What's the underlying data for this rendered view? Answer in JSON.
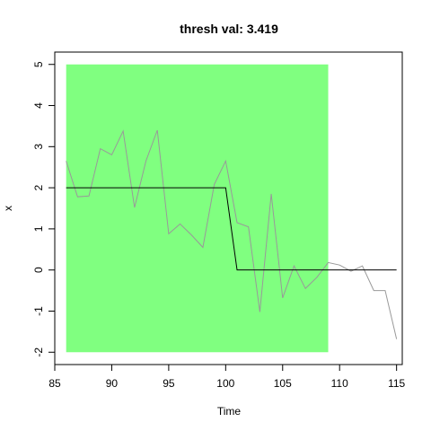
{
  "chart_data": {
    "type": "line",
    "title": "thresh val: 3.419",
    "xlabel": "Time",
    "ylabel": "x",
    "xlim": [
      85,
      115.5
    ],
    "ylim": [
      -2.3,
      5.3
    ],
    "x_ticks": [
      85,
      90,
      95,
      100,
      105,
      110,
      115
    ],
    "y_ticks": [
      -2,
      -1,
      0,
      1,
      2,
      3,
      4,
      5
    ],
    "highlight_region": {
      "x": [
        86,
        109
      ],
      "y": [
        -2,
        5
      ],
      "color": "#80ff80"
    },
    "series": [
      {
        "color": "#999999",
        "x": [
          86,
          87,
          88,
          89,
          90,
          91,
          92,
          93,
          94,
          95,
          96,
          97,
          98,
          99,
          100,
          101,
          102,
          103,
          104,
          105,
          106,
          107,
          108,
          109,
          110,
          111,
          112,
          113,
          114,
          115
        ],
        "values": [
          2.65,
          1.78,
          1.8,
          2.95,
          2.8,
          3.38,
          1.52,
          2.65,
          3.4,
          0.88,
          1.12,
          0.85,
          0.55,
          2.08,
          2.65,
          1.15,
          1.05,
          -1.02,
          1.85,
          -0.68,
          0.1,
          -0.45,
          -0.18,
          0.18,
          0.12,
          -0.03,
          0.1,
          -0.5,
          -0.5,
          -1.68
        ]
      },
      {
        "color": "#000000",
        "x": [
          86,
          100,
          101,
          115
        ],
        "values": [
          2,
          2,
          0,
          0
        ]
      }
    ]
  }
}
